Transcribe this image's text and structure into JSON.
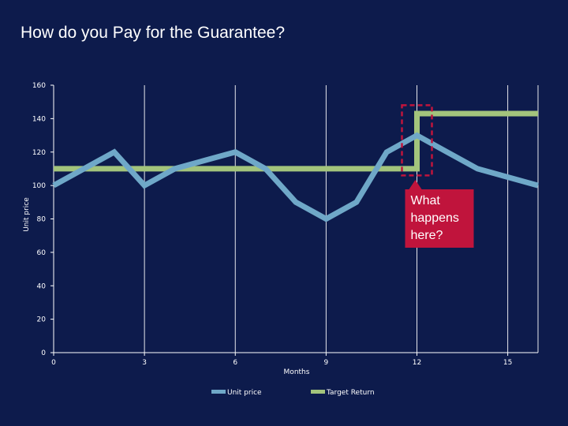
{
  "slide": {
    "title": "How do you Pay for the Guarantee?"
  },
  "chart_data": {
    "type": "line",
    "title": "",
    "xlabel": "Months",
    "ylabel": "Unit price",
    "xlim": [
      0,
      16
    ],
    "ylim": [
      0,
      160
    ],
    "xticks": [
      "0",
      "3",
      "6",
      "9",
      "12",
      "15"
    ],
    "yticks": [
      "0",
      "20",
      "40",
      "60",
      "80",
      "100",
      "120",
      "140",
      "160"
    ],
    "grid": "vertical",
    "legend_position": "bottom",
    "series": [
      {
        "name": "Unit price",
        "color": "#6fa8c8",
        "x": [
          0,
          1,
          2,
          3,
          4,
          5,
          6,
          7,
          8,
          9,
          10,
          11,
          12,
          13,
          14,
          15,
          16
        ],
        "y": [
          100,
          110,
          120,
          100,
          110,
          115,
          120,
          110,
          90,
          80,
          90,
          120,
          130,
          120,
          110,
          105,
          100
        ]
      },
      {
        "name": "Target Return",
        "color": "#a3c47c",
        "x": [
          0,
          12,
          12,
          16
        ],
        "y": [
          110,
          110,
          143,
          143
        ]
      }
    ],
    "annotation": {
      "text_lines": [
        "What",
        "happens",
        "here?"
      ],
      "color": "#c0143c"
    }
  }
}
